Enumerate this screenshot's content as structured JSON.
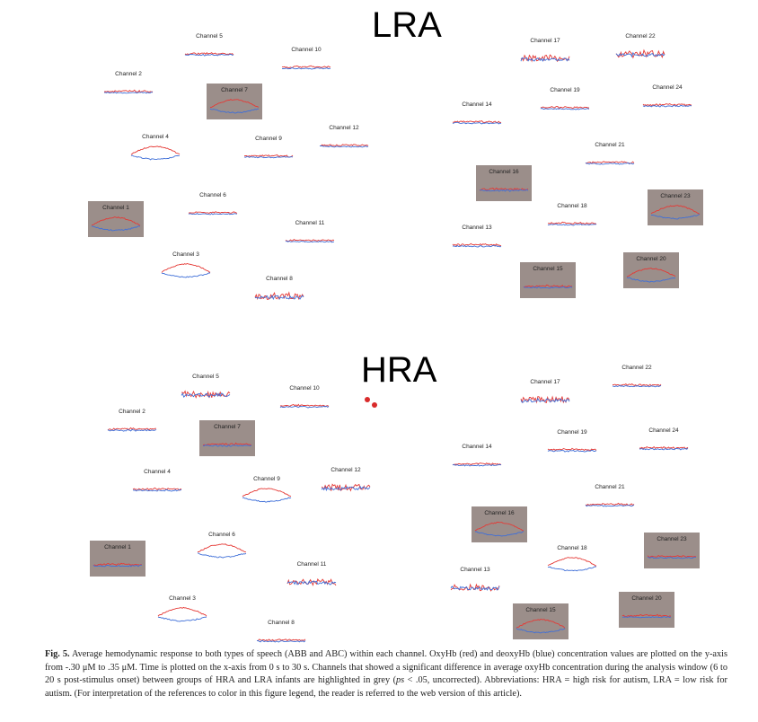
{
  "figure": {
    "lra_title": "LRA",
    "hra_title": "HRA",
    "lra_channels": [
      {
        "label": "Channel 5",
        "significant": false,
        "shape": "flat"
      },
      {
        "label": "Channel 10",
        "significant": false,
        "shape": "flat"
      },
      {
        "label": "Channel 2",
        "significant": false,
        "shape": "flat"
      },
      {
        "label": "Channel 7",
        "significant": true,
        "shape": "hump"
      },
      {
        "label": "Channel 12",
        "significant": false,
        "shape": "flat"
      },
      {
        "label": "Channel 4",
        "significant": false,
        "shape": "hump"
      },
      {
        "label": "Channel 9",
        "significant": false,
        "shape": "flat"
      },
      {
        "label": "Channel 6",
        "significant": false,
        "shape": "flat"
      },
      {
        "label": "Channel 1",
        "significant": true,
        "shape": "hump"
      },
      {
        "label": "Channel 11",
        "significant": false,
        "shape": "flat"
      },
      {
        "label": "Channel 3",
        "significant": false,
        "shape": "hump"
      },
      {
        "label": "Channel 8",
        "significant": false,
        "shape": "noisy"
      },
      {
        "label": "Channel 17",
        "significant": false,
        "shape": "noisy"
      },
      {
        "label": "Channel 22",
        "significant": false,
        "shape": "noisy"
      },
      {
        "label": "Channel 19",
        "significant": false,
        "shape": "flat"
      },
      {
        "label": "Channel 24",
        "significant": false,
        "shape": "flat"
      },
      {
        "label": "Channel 14",
        "significant": false,
        "shape": "flat"
      },
      {
        "label": "Channel 21",
        "significant": false,
        "shape": "flat"
      },
      {
        "label": "Channel 16",
        "significant": true,
        "shape": "flat"
      },
      {
        "label": "Channel 18",
        "significant": false,
        "shape": "flat"
      },
      {
        "label": "Channel 23",
        "significant": true,
        "shape": "hump"
      },
      {
        "label": "Channel 13",
        "significant": false,
        "shape": "flat"
      },
      {
        "label": "Channel 15",
        "significant": true,
        "shape": "flat"
      },
      {
        "label": "Channel 20",
        "significant": true,
        "shape": "hump"
      }
    ],
    "hra_channels": [
      {
        "label": "Channel 5",
        "significant": false,
        "shape": "noisy"
      },
      {
        "label": "Channel 10",
        "significant": false,
        "shape": "flat"
      },
      {
        "label": "Channel 2",
        "significant": false,
        "shape": "flat"
      },
      {
        "label": "Channel 7",
        "significant": true,
        "shape": "flat"
      },
      {
        "label": "Channel 4",
        "significant": false,
        "shape": "flat"
      },
      {
        "label": "Channel 9",
        "significant": false,
        "shape": "hump"
      },
      {
        "label": "Channel 12",
        "significant": false,
        "shape": "noisy"
      },
      {
        "label": "Channel 6",
        "significant": false,
        "shape": "hump"
      },
      {
        "label": "Channel 1",
        "significant": true,
        "shape": "flat"
      },
      {
        "label": "Channel 11",
        "significant": false,
        "shape": "noisy"
      },
      {
        "label": "Channel 3",
        "significant": false,
        "shape": "hump"
      },
      {
        "label": "Channel 8",
        "significant": false,
        "shape": "flat"
      },
      {
        "label": "Channel 17",
        "significant": false,
        "shape": "noisy"
      },
      {
        "label": "Channel 22",
        "significant": false,
        "shape": "flat"
      },
      {
        "label": "Channel 19",
        "significant": false,
        "shape": "flat"
      },
      {
        "label": "Channel 24",
        "significant": false,
        "shape": "flat"
      },
      {
        "label": "Channel 14",
        "significant": false,
        "shape": "flat"
      },
      {
        "label": "Channel 21",
        "significant": false,
        "shape": "flat"
      },
      {
        "label": "Channel 16",
        "significant": true,
        "shape": "hump"
      },
      {
        "label": "Channel 18",
        "significant": false,
        "shape": "hump"
      },
      {
        "label": "Channel 23",
        "significant": true,
        "shape": "flat"
      },
      {
        "label": "Channel 13",
        "significant": false,
        "shape": "noisy"
      },
      {
        "label": "Channel 15",
        "significant": true,
        "shape": "hump"
      },
      {
        "label": "Channel 20",
        "significant": true,
        "shape": "flat"
      }
    ],
    "colors": {
      "oxyhb": "#e53935",
      "deoxyhb": "#3f6fd8",
      "highlight": "#9b8e8a",
      "dot": "#d92b2b"
    }
  },
  "caption": {
    "label": "Fig. 5.",
    "part1": " Average hemodynamic response to both types of speech (ABB and ABC) within each channel. OxyHb (red) and deoxyHb (blue) concentration values are plotted on the y-axis from -.30 μM to .35 μM. Time is plotted on the x-axis from 0 s to 30 s. Channels that showed a significant difference in average oxyHb concentration during the analysis window (6 to 20 s post-stimulus onset) between groups of HRA and LRA infants are highlighted in grey (",
    "ps": "ps",
    "part2": " < .05, uncorrected). Abbreviations: HRA = high risk for autism, LRA = low risk for autism. (For interpretation of the references to color in this figure legend, the reader is referred to the web version of this article)."
  }
}
